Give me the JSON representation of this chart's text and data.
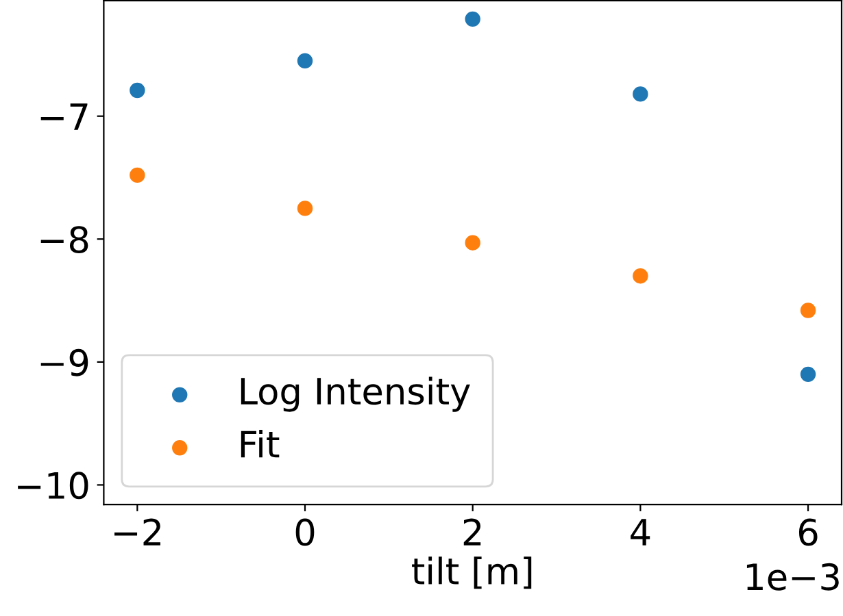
{
  "chart_data": {
    "type": "scatter",
    "xlabel": "tilt [m]",
    "x": [
      -2,
      0,
      2,
      4,
      6
    ],
    "series": [
      {
        "name": "Log Intensity",
        "color": "#1f77b4",
        "values": [
          -6.79,
          -6.55,
          -6.21,
          -6.82,
          -9.1
        ]
      },
      {
        "name": "Fit",
        "color": "#ff7f0e",
        "values": [
          -7.48,
          -7.75,
          -8.03,
          -8.3,
          -8.58
        ]
      }
    ],
    "xlim": [
      -2.4,
      6.4
    ],
    "ylim": [
      -10.16,
      -6.06
    ],
    "xticks": [
      {
        "value": -2,
        "label": "−2"
      },
      0,
      2,
      4,
      6
    ],
    "yticks": [
      {
        "value": -10,
        "label": "−10"
      },
      {
        "value": -9,
        "label": "−9"
      },
      {
        "value": -8,
        "label": "−8"
      },
      {
        "value": -7,
        "label": "−7"
      }
    ],
    "annotations": [
      "1e−3"
    ],
    "marker": "circle",
    "legend": "bottom left",
    "grid": false
  }
}
